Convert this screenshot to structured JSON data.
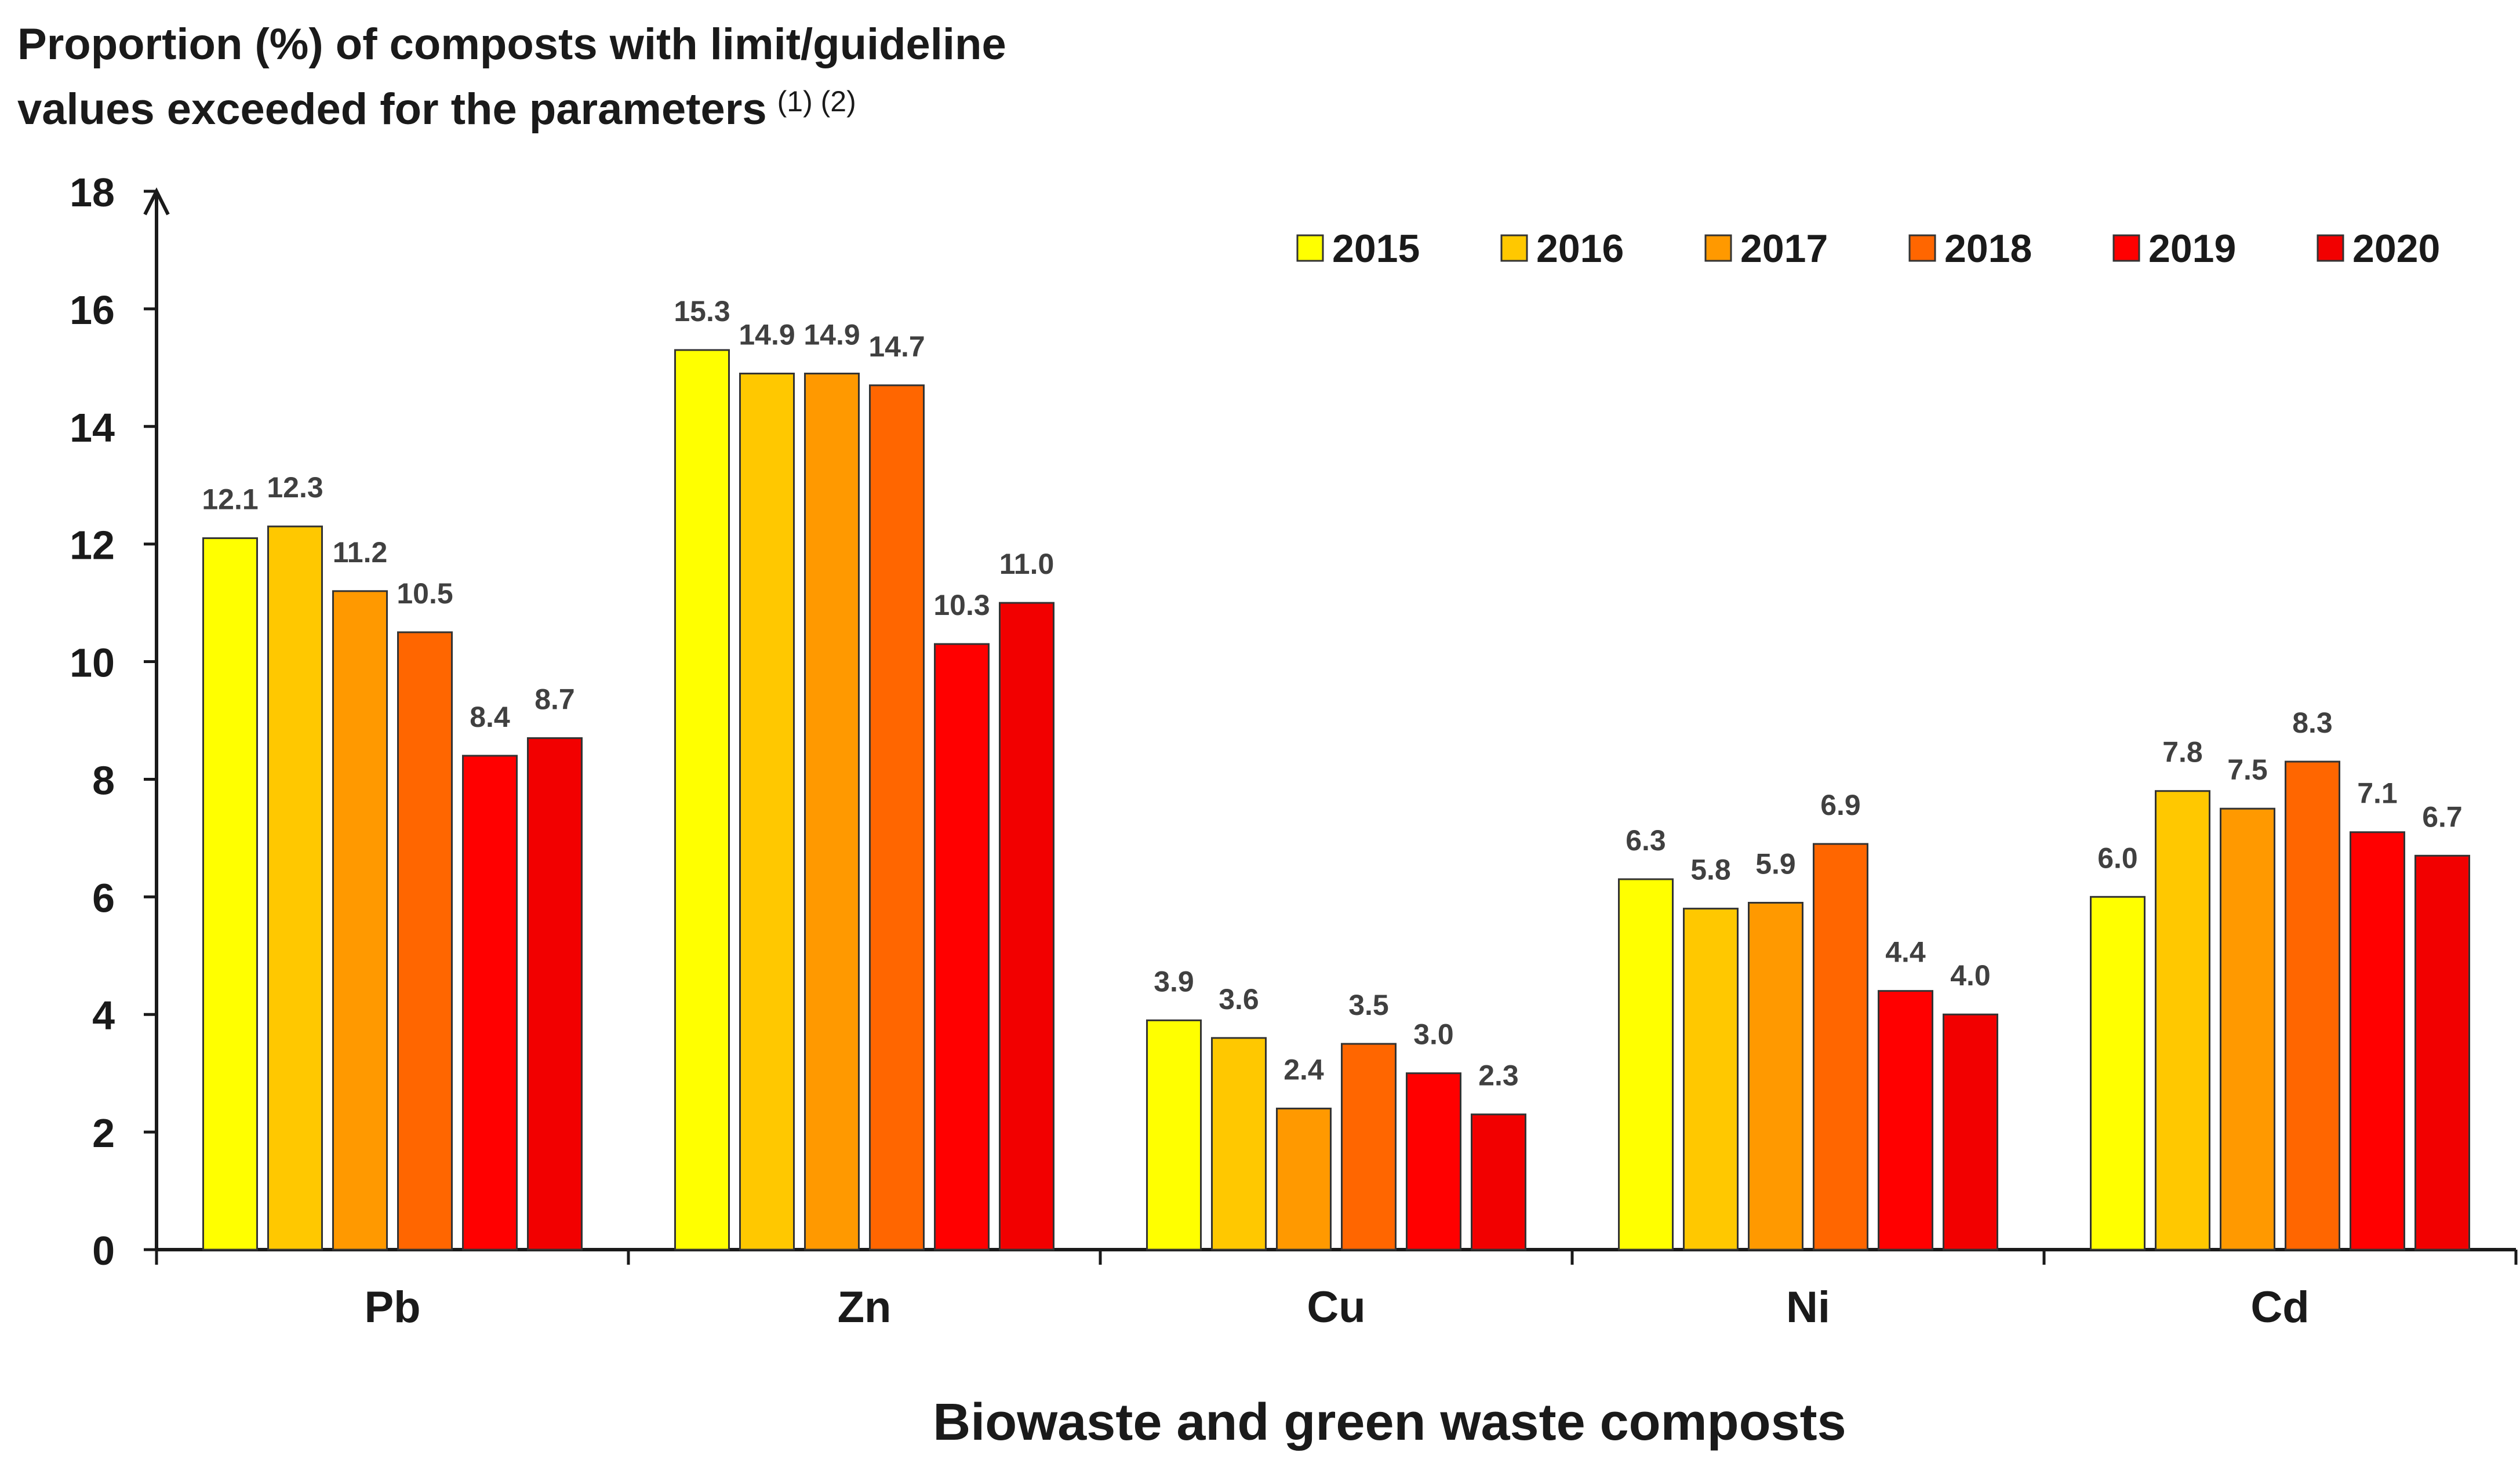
{
  "chart_data": {
    "type": "bar",
    "title": "Proportion (%) of composts with limit/guideline values exceeded for the parameters",
    "title_lines": [
      "Proportion (%) of composts with limit/guideline",
      "values exceeded for the parameters"
    ],
    "title_note": "(1) (2)",
    "xlabel": "Biowaste and green waste composts",
    "ylabel": "",
    "ylim": [
      0,
      18
    ],
    "yticks": [
      0,
      2,
      4,
      6,
      8,
      10,
      12,
      14,
      16,
      18
    ],
    "categories": [
      "Pb",
      "Zn",
      "Cu",
      "Ni",
      "Cd"
    ],
    "legend_position": "top-right",
    "grid": false,
    "series": [
      {
        "name": "2015",
        "color": "#FFFF00",
        "values": [
          12.1,
          15.3,
          3.9,
          6.3,
          6.0
        ]
      },
      {
        "name": "2016",
        "color": "#FFC800",
        "values": [
          12.3,
          14.9,
          3.6,
          5.8,
          7.8
        ]
      },
      {
        "name": "2017",
        "color": "#FF9900",
        "values": [
          11.2,
          14.9,
          2.4,
          5.9,
          7.5
        ]
      },
      {
        "name": "2018",
        "color": "#FF6600",
        "values": [
          10.5,
          14.7,
          3.5,
          6.9,
          8.3
        ]
      },
      {
        "name": "2019",
        "color": "#FF0000",
        "values": [
          8.4,
          10.3,
          3.0,
          4.4,
          7.1
        ]
      },
      {
        "name": "2020",
        "color": "#F20000",
        "values": [
          8.7,
          11.0,
          2.3,
          4.0,
          6.7
        ]
      }
    ],
    "data_label_color": "#404040"
  }
}
